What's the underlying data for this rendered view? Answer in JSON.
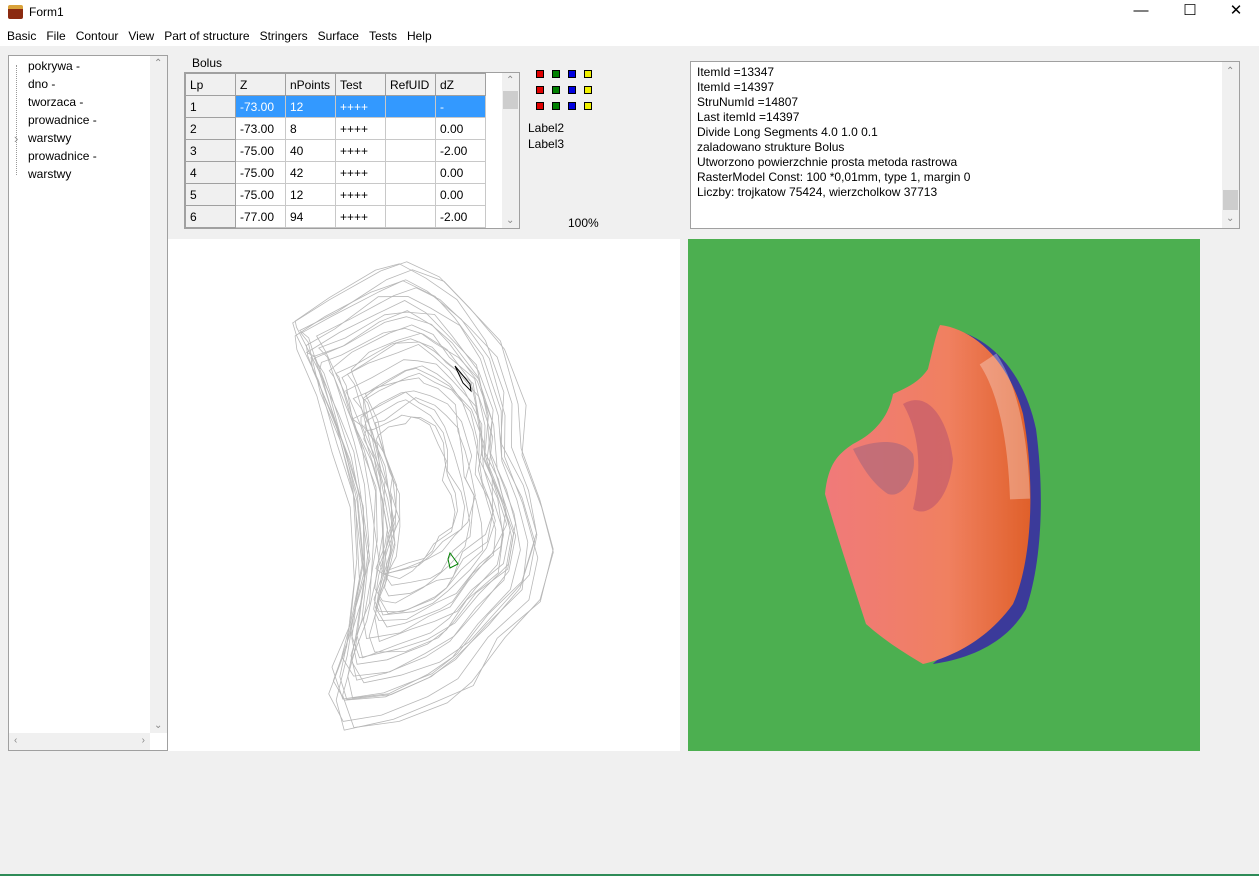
{
  "window": {
    "title": "Form1",
    "minimize": "—",
    "maximize": "☐",
    "close": "✕"
  },
  "menu": [
    "Basic",
    "File",
    "Contour",
    "View",
    "Part of structure",
    "Stringers",
    "Surface",
    "Tests",
    "Help"
  ],
  "tree": {
    "items": [
      "pokrywa -",
      "dno -",
      "tworzaca -",
      "prowadnice -",
      "warstwy",
      "prowadnice -",
      "warstwy"
    ],
    "expander": "›"
  },
  "structure_label": "Bolus",
  "table": {
    "columns": [
      "Lp",
      "Z",
      "nPoints",
      "Test",
      "RefUID",
      "dZ"
    ],
    "rows": [
      [
        "1",
        "-73.00",
        "12",
        "++++",
        "",
        "-"
      ],
      [
        "2",
        "-73.00",
        "8",
        "++++",
        "",
        "0.00"
      ],
      [
        "3",
        "-75.00",
        "40",
        "++++",
        "",
        "-2.00"
      ],
      [
        "4",
        "-75.00",
        "42",
        "++++",
        "",
        "0.00"
      ],
      [
        "5",
        "-75.00",
        "12",
        "++++",
        "",
        "0.00"
      ],
      [
        "6",
        "-77.00",
        "94",
        "++++",
        "",
        "-2.00"
      ]
    ],
    "selected_row": 1
  },
  "color_squares": [
    "#e00000",
    "#008000",
    "#0000e0",
    "#f0f000"
  ],
  "label2": "Label2",
  "label3": "Label3",
  "zoom": "100%",
  "log": [
    "ItemId =13347",
    "ItemId =14397",
    "StruNumId =14807",
    "Last itemId =14397",
    "Divide Long Segments 4.0 1.0 0.1",
    "zaladowano strukture Bolus",
    "Utworzono powierzchnie prosta metoda rastrowa",
    "RasterModel Const: 100 *0,01mm, type 1, margin 0",
    "Liczby: trojkatow 75424, wierzcholkow 37713"
  ],
  "render_background": "#4caf50"
}
